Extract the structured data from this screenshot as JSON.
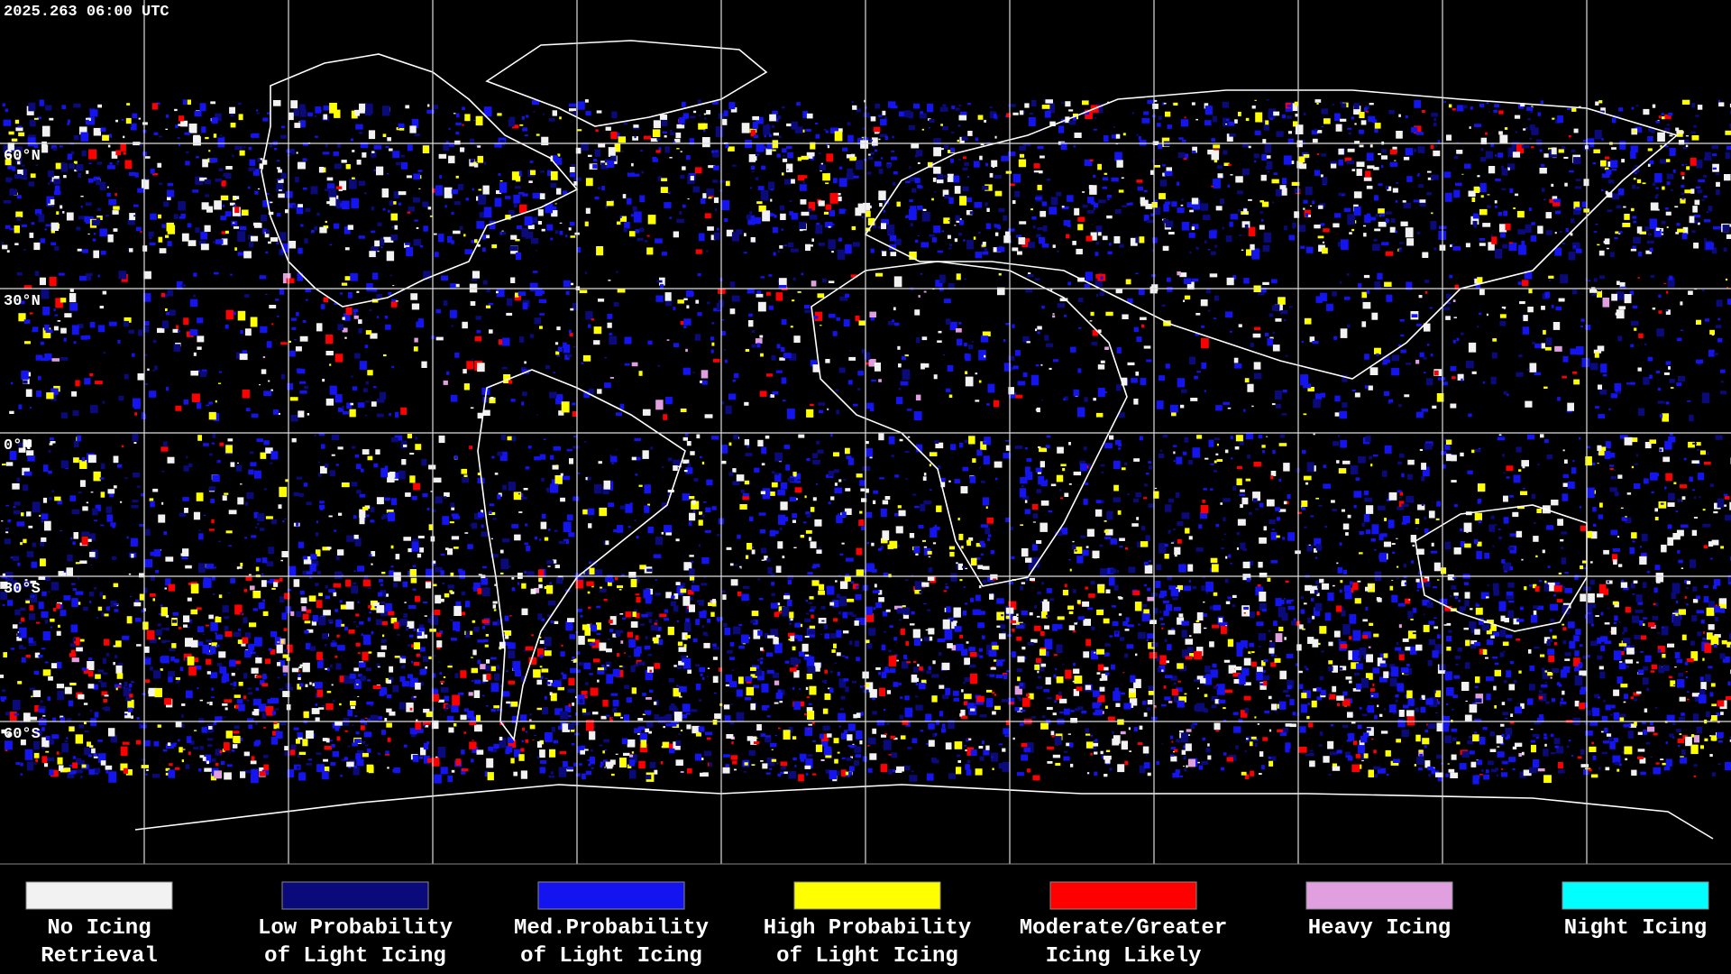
{
  "header": {
    "timestamp": "2025.263 06:00 UTC"
  },
  "map": {
    "latitude_labels": [
      "60°N",
      "30°N",
      "0°N",
      "30°S",
      "60°S"
    ]
  },
  "legend": {
    "items": [
      {
        "label_lines": [
          "No Icing",
          "Retrieval"
        ],
        "color": "#f2f2f2"
      },
      {
        "label_lines": [
          "Low Probability",
          "of Light Icing"
        ],
        "color": "#0a0a7a"
      },
      {
        "label_lines": [
          "Med.Probability",
          "of Light Icing"
        ],
        "color": "#1414f0"
      },
      {
        "label_lines": [
          "High Probability",
          "of Light Icing"
        ],
        "color": "#ffff00"
      },
      {
        "label_lines": [
          "Moderate/Greater",
          "Icing Likely"
        ],
        "color": "#ff0000"
      },
      {
        "label_lines": [
          "Heavy Icing"
        ],
        "color": "#e0a0e0"
      },
      {
        "label_lines": [
          "Night Icing"
        ],
        "color": "#00ffff"
      }
    ]
  }
}
